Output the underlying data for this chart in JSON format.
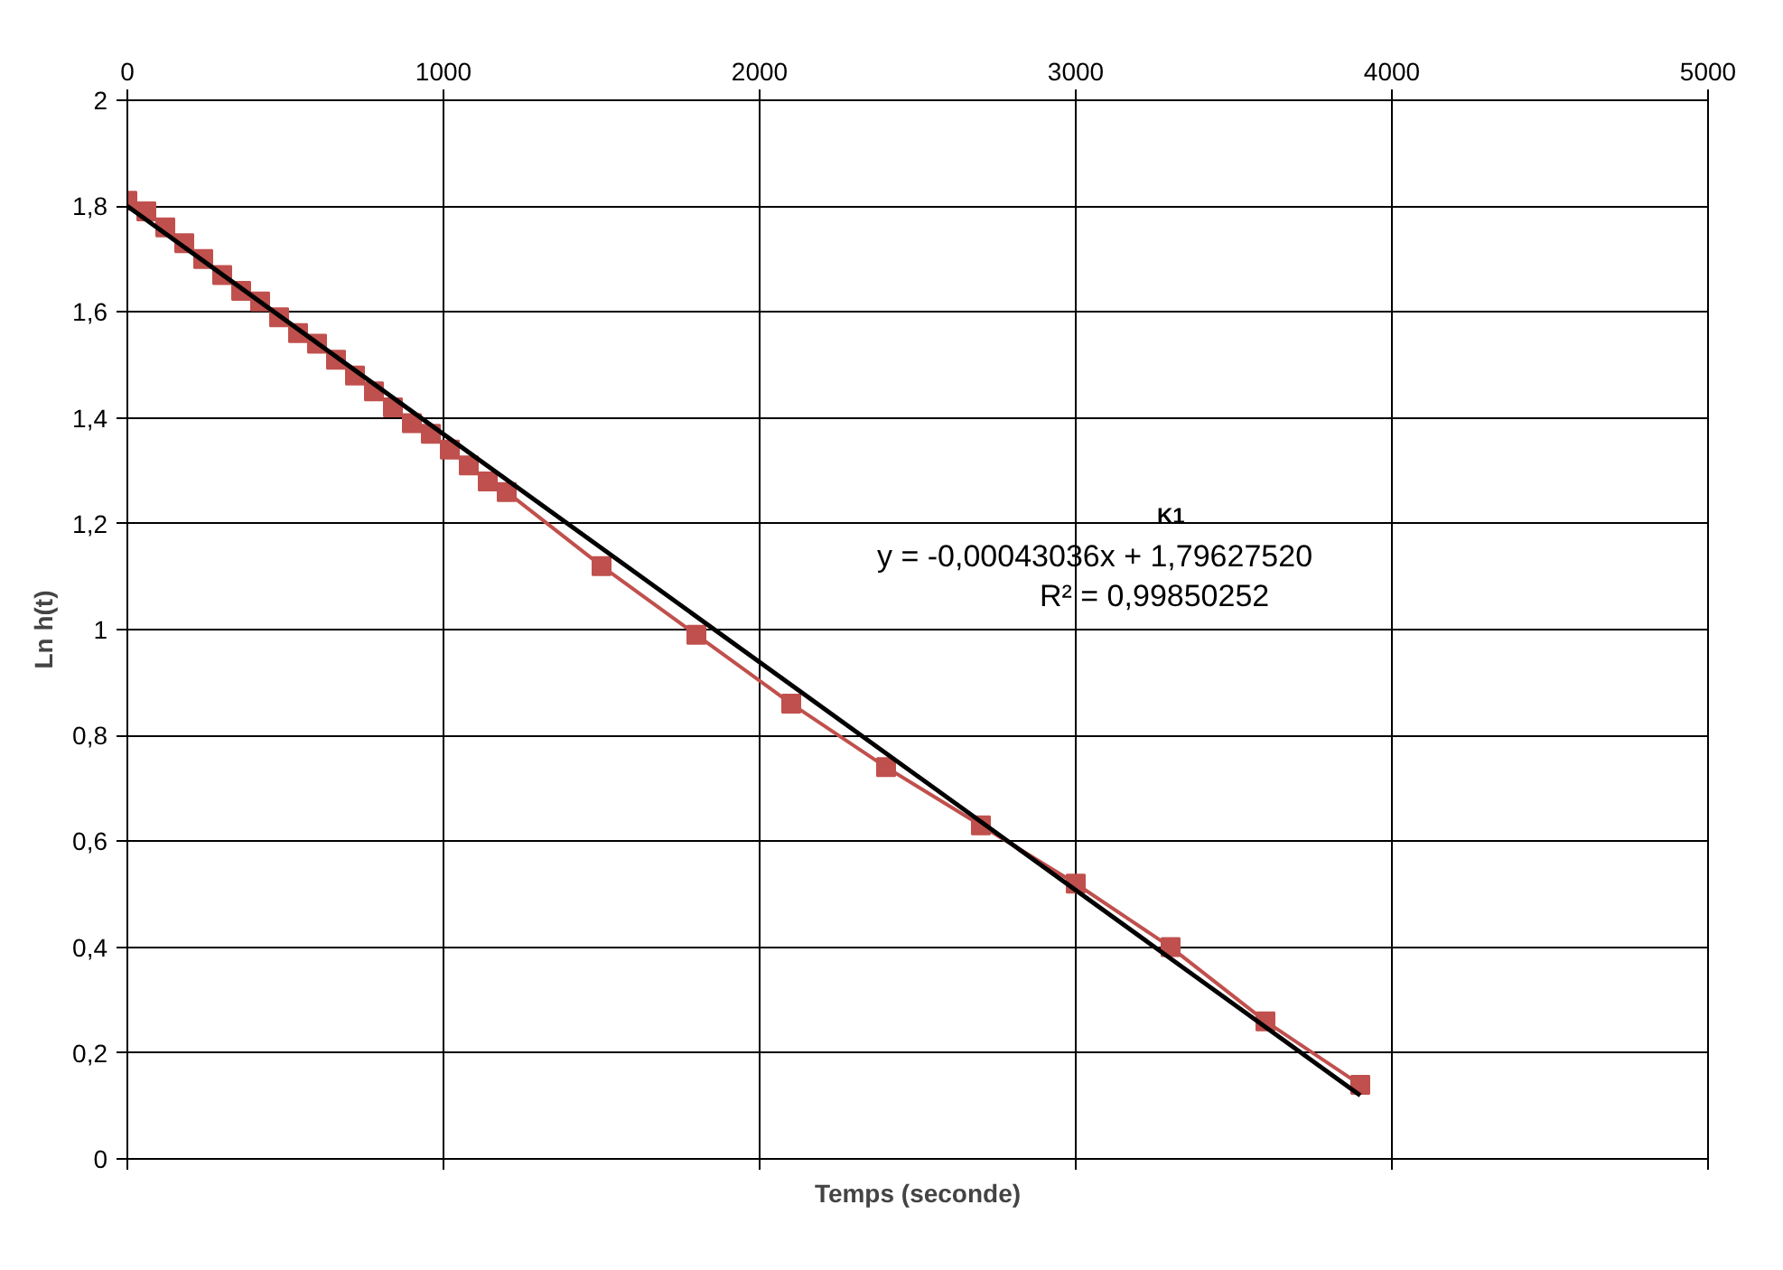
{
  "chart_data": {
    "type": "line",
    "xlabel": "Temps (seconde)",
    "ylabel": "Ln h(t)",
    "xlim": [
      0,
      5000
    ],
    "xticks": [
      0,
      1000,
      2000,
      3000,
      4000,
      5000
    ],
    "ylim": [
      0,
      2
    ],
    "yticks": [
      0,
      {
        "value": 0.2,
        "label": "0,2"
      },
      {
        "value": 0.4,
        "label": "0,4"
      },
      {
        "value": 0.6,
        "label": "0,6"
      },
      {
        "value": 0.8,
        "label": "0,8"
      },
      1,
      {
        "value": 1.2,
        "label": "1,2"
      },
      {
        "value": 1.4,
        "label": "1,4"
      },
      {
        "value": 1.6,
        "label": "1,6"
      },
      {
        "value": 1.8,
        "label": "1,8"
      },
      2
    ],
    "grid": true,
    "line_style": "solid",
    "series": [
      {
        "marker": "square",
        "color": "#c0504d",
        "x": [
          0,
          60,
          120,
          180,
          240,
          300,
          360,
          420,
          480,
          540,
          600,
          660,
          720,
          780,
          840,
          900,
          960,
          1020,
          1080,
          1140,
          1200,
          1500,
          1800,
          2100,
          2400,
          2700,
          3000,
          3300,
          3600,
          3900
        ],
        "values": [
          1.81,
          1.79,
          1.76,
          1.73,
          1.7,
          1.67,
          1.64,
          1.62,
          1.59,
          1.56,
          1.54,
          1.51,
          1.48,
          1.45,
          1.42,
          1.39,
          1.37,
          1.34,
          1.31,
          1.28,
          1.26,
          1.12,
          0.99,
          0.86,
          0.74,
          0.63,
          0.52,
          0.4,
          0.26,
          0.14
        ]
      },
      {
        "marker": "none",
        "color": "#000000",
        "x": [
          0,
          3900
        ],
        "values": [
          1.8,
          0.12
        ]
      }
    ],
    "annotations": [
      "K1",
      "y = -0,00043036x + 1,79627520",
      "R² = 0,99850252"
    ]
  }
}
